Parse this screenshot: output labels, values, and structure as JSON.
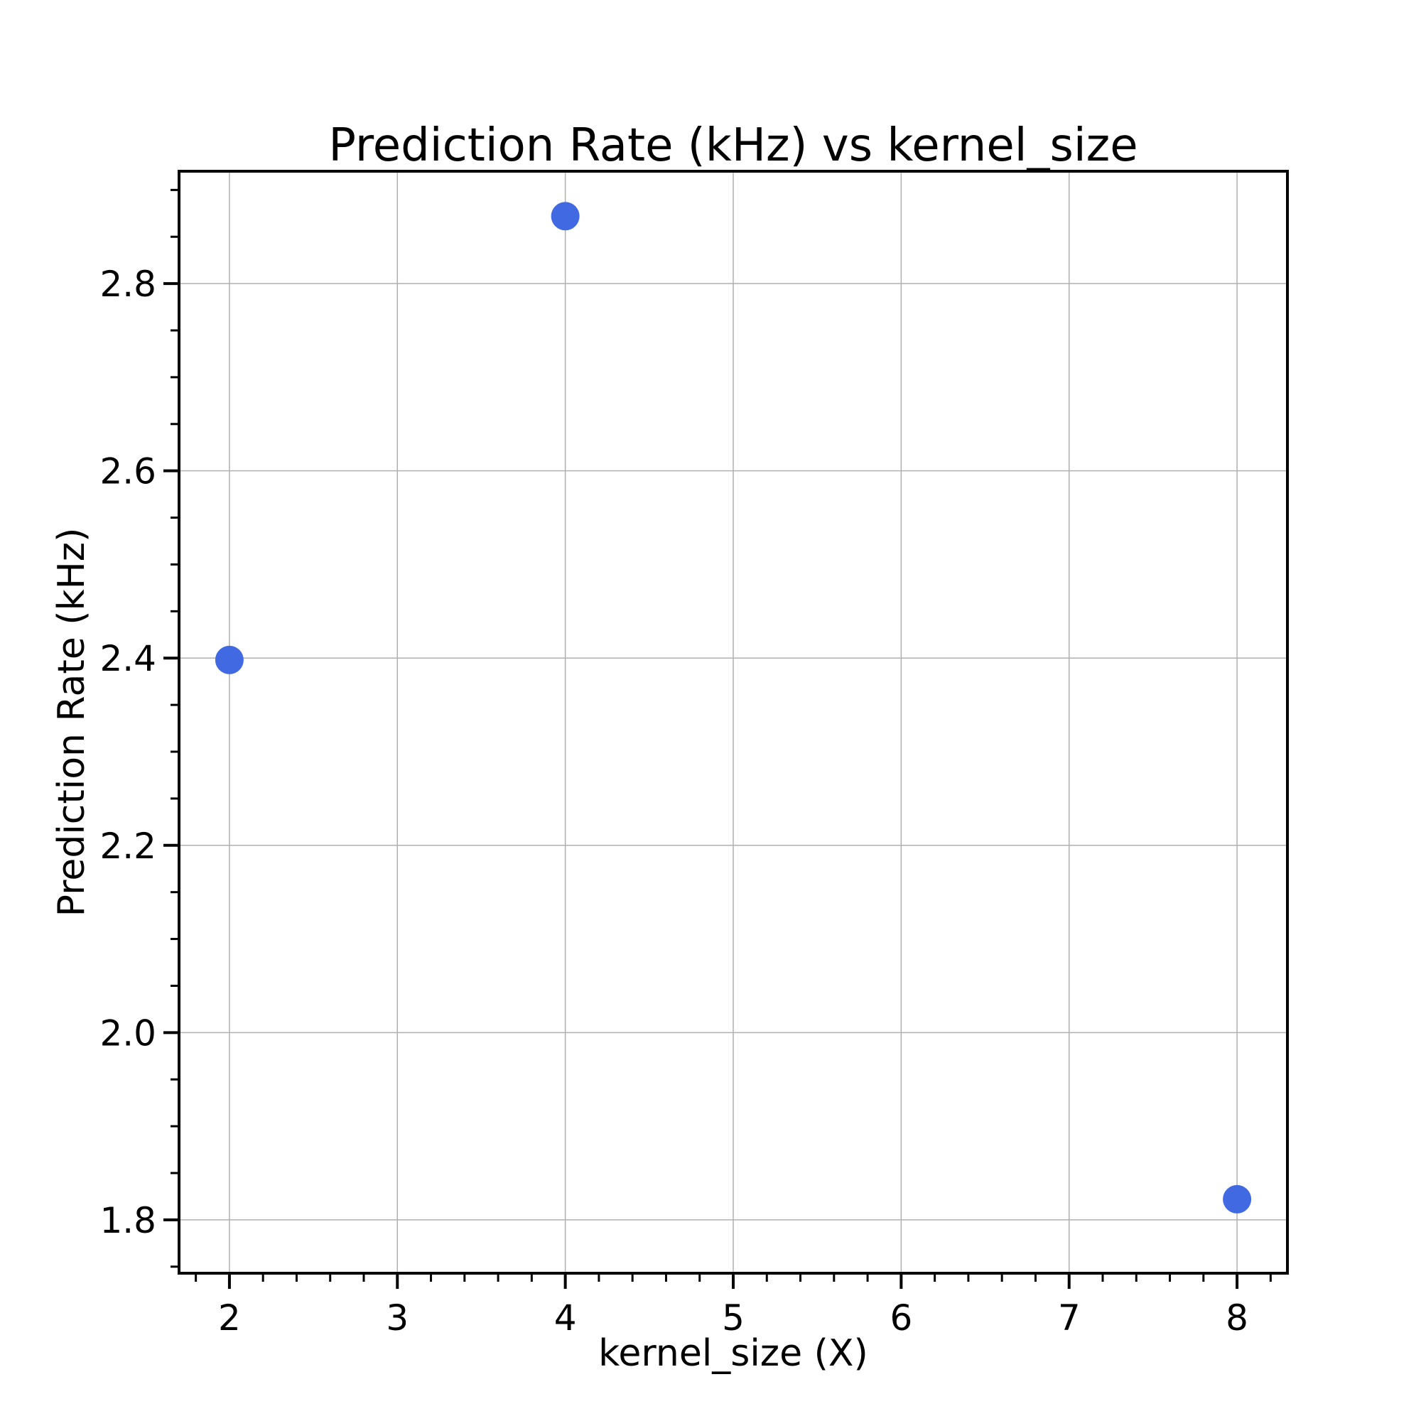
{
  "chart_data": {
    "type": "scatter",
    "title": "Prediction Rate (kHz) vs kernel_size",
    "xlabel": "kernel_size (X)",
    "ylabel": "Prediction Rate (kHz)",
    "xlim": [
      1.7,
      8.3
    ],
    "ylim": [
      1.743,
      2.92
    ],
    "xticks": [
      2,
      3,
      4,
      5,
      6,
      7,
      8
    ],
    "xtick_labels": [
      "2",
      "3",
      "4",
      "5",
      "6",
      "7",
      "8"
    ],
    "xminor_step": 0.2,
    "yticks": [
      1.8,
      2.0,
      2.2,
      2.4,
      2.6,
      2.8
    ],
    "ytick_labels": [
      "1.8",
      "2.0",
      "2.2",
      "2.4",
      "2.6",
      "2.8"
    ],
    "yminor_step": 0.05,
    "grid": true,
    "series": [
      {
        "x": [
          2,
          4,
          8
        ],
        "y": [
          2.398,
          2.872,
          1.822
        ],
        "color": "#4169e1"
      }
    ]
  }
}
